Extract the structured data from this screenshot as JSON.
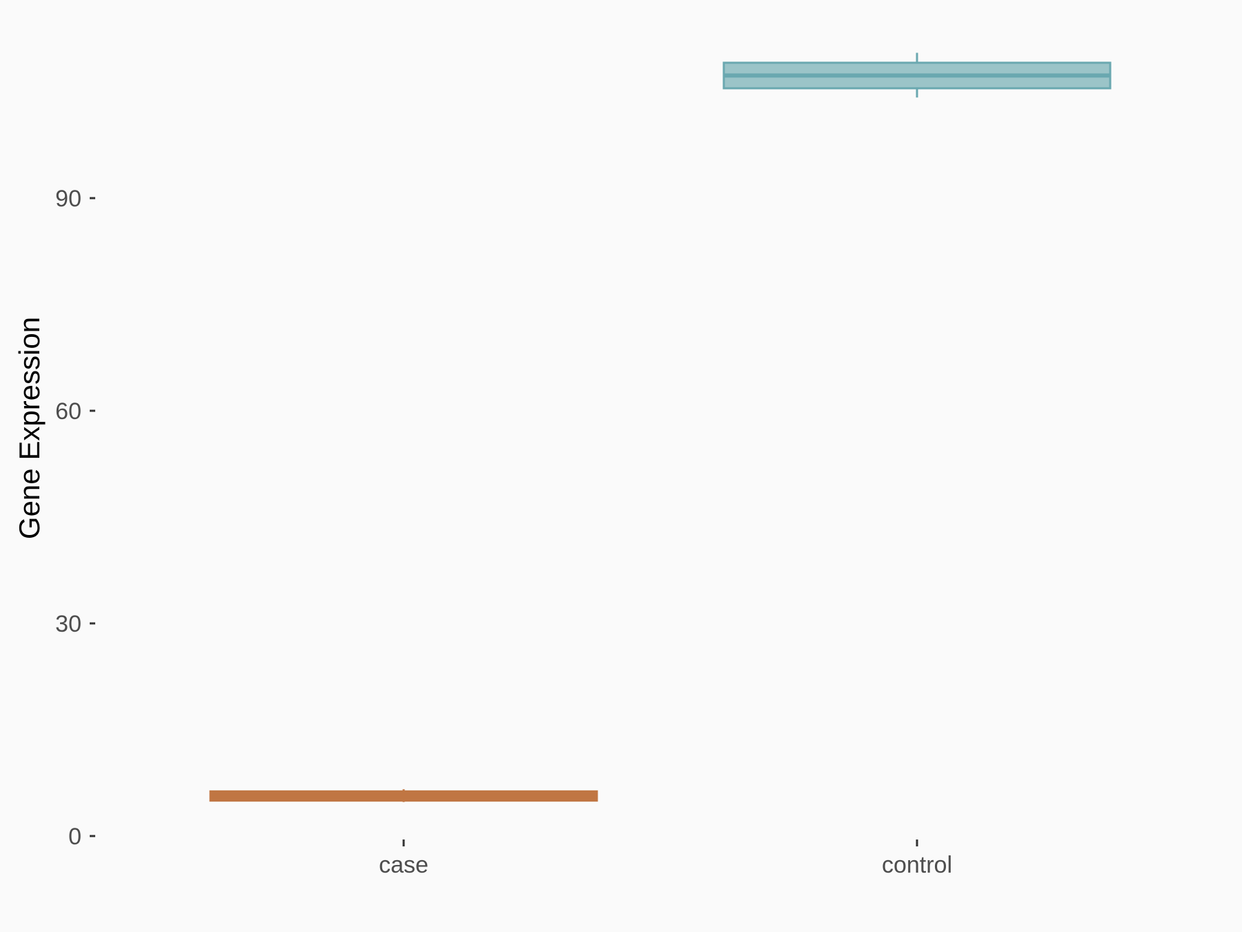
{
  "chart_data": {
    "type": "boxplot",
    "title": "",
    "xlabel": "",
    "ylabel": "Gene Expression",
    "ylim": [
      0,
      112
    ],
    "yticks": [
      0,
      30,
      60,
      90
    ],
    "categories": [
      "case",
      "control"
    ],
    "boxes": [
      {
        "category": "case",
        "min": 4.8,
        "q1": 5.0,
        "median": 5.7,
        "q3": 6.3,
        "max": 6.6,
        "fill": "#C07643",
        "stroke": "#C07643"
      },
      {
        "category": "control",
        "min": 104.2,
        "q1": 105.5,
        "median": 107.3,
        "q3": 109.1,
        "max": 110.5,
        "fill": "#9BC4C8",
        "stroke": "#6AA8B0"
      }
    ],
    "grid": false,
    "legend": "none",
    "background": "#FAFAFA"
  }
}
